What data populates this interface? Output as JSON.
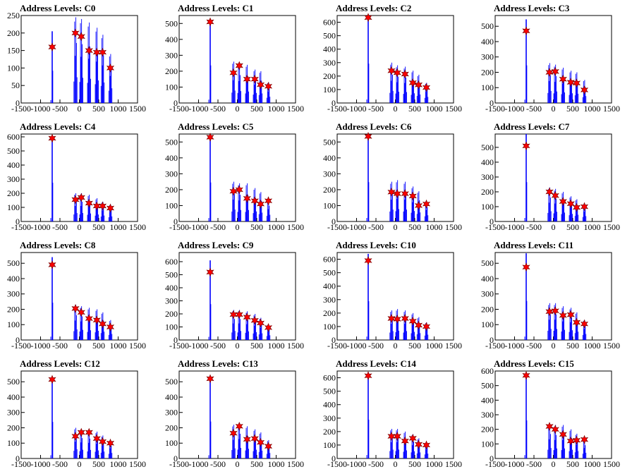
{
  "chart_data": [
    {
      "type": "bar",
      "title": "Address Levels: C0",
      "xlim": [
        -1500,
        1500
      ],
      "ylim": [
        0,
        250
      ],
      "yticks": [
        0,
        50,
        100,
        150,
        200,
        250
      ],
      "main_peak": {
        "x": -700,
        "y": 205
      },
      "peaks_x": [
        -100,
        50,
        250,
        450,
        600,
        800
      ],
      "peaks_y": [
        245,
        240,
        230,
        215,
        195,
        140
      ],
      "markers": [
        {
          "x": -700,
          "y": 160
        },
        {
          "x": -100,
          "y": 200
        },
        {
          "x": 50,
          "y": 190
        },
        {
          "x": 250,
          "y": 150
        },
        {
          "x": 450,
          "y": 145
        },
        {
          "x": 600,
          "y": 145
        },
        {
          "x": 800,
          "y": 100
        }
      ]
    },
    {
      "type": "bar",
      "title": "Address Levels: C1",
      "xlim": [
        -1500,
        1500
      ],
      "ylim": [
        0,
        550
      ],
      "yticks": [
        0,
        100,
        200,
        300,
        400,
        500
      ],
      "main_peak": {
        "x": -700,
        "y": 525
      },
      "peaks_x": [
        -100,
        50,
        250,
        450,
        600,
        800
      ],
      "peaks_y": [
        260,
        250,
        240,
        210,
        200,
        130
      ],
      "markers": [
        {
          "x": -700,
          "y": 510
        },
        {
          "x": -100,
          "y": 190
        },
        {
          "x": 50,
          "y": 235
        },
        {
          "x": 250,
          "y": 150
        },
        {
          "x": 450,
          "y": 150
        },
        {
          "x": 600,
          "y": 115
        },
        {
          "x": 800,
          "y": 105
        }
      ]
    },
    {
      "type": "bar",
      "title": "Address Levels: C2",
      "xlim": [
        -1500,
        1500
      ],
      "ylim": [
        0,
        650
      ],
      "yticks": [
        0,
        100,
        200,
        300,
        400,
        500,
        600
      ],
      "main_peak": {
        "x": -700,
        "y": 650
      },
      "peaks_x": [
        -100,
        50,
        250,
        450,
        600,
        800
      ],
      "peaks_y": [
        300,
        280,
        270,
        240,
        210,
        150
      ],
      "markers": [
        {
          "x": -700,
          "y": 635
        },
        {
          "x": -100,
          "y": 240
        },
        {
          "x": 50,
          "y": 225
        },
        {
          "x": 250,
          "y": 215
        },
        {
          "x": 450,
          "y": 150
        },
        {
          "x": 600,
          "y": 135
        },
        {
          "x": 800,
          "y": 115
        }
      ]
    },
    {
      "type": "bar",
      "title": "Address Levels: C3",
      "xlim": [
        -1500,
        1500
      ],
      "ylim": [
        0,
        570
      ],
      "yticks": [
        0,
        100,
        200,
        300,
        400,
        500
      ],
      "main_peak": {
        "x": -700,
        "y": 545
      },
      "peaks_x": [
        -100,
        50,
        250,
        450,
        600,
        800
      ],
      "peaks_y": [
        260,
        250,
        230,
        210,
        200,
        150
      ],
      "markers": [
        {
          "x": -700,
          "y": 470
        },
        {
          "x": -100,
          "y": 200
        },
        {
          "x": 50,
          "y": 205
        },
        {
          "x": 250,
          "y": 155
        },
        {
          "x": 450,
          "y": 135
        },
        {
          "x": 600,
          "y": 130
        },
        {
          "x": 800,
          "y": 85
        }
      ]
    },
    {
      "type": "bar",
      "title": "Address Levels: C4",
      "xlim": [
        -1500,
        1500
      ],
      "ylim": [
        0,
        620
      ],
      "yticks": [
        0,
        100,
        200,
        300,
        400,
        500,
        600
      ],
      "main_peak": {
        "x": -700,
        "y": 610
      },
      "peaks_x": [
        -100,
        50,
        250,
        450,
        600,
        800
      ],
      "peaks_y": [
        200,
        200,
        190,
        165,
        140,
        120
      ],
      "markers": [
        {
          "x": -700,
          "y": 590
        },
        {
          "x": -100,
          "y": 155
        },
        {
          "x": 50,
          "y": 170
        },
        {
          "x": 250,
          "y": 130
        },
        {
          "x": 450,
          "y": 110
        },
        {
          "x": 600,
          "y": 110
        },
        {
          "x": 800,
          "y": 95
        }
      ]
    },
    {
      "type": "bar",
      "title": "Address Levels: C5",
      "xlim": [
        -1500,
        1500
      ],
      "ylim": [
        0,
        550
      ],
      "yticks": [
        0,
        100,
        200,
        300,
        400,
        500
      ],
      "main_peak": {
        "x": -700,
        "y": 545
      },
      "peaks_x": [
        -100,
        50,
        250,
        450,
        600,
        800
      ],
      "peaks_y": [
        250,
        240,
        240,
        210,
        185,
        140
      ],
      "markers": [
        {
          "x": -700,
          "y": 530
        },
        {
          "x": -100,
          "y": 190
        },
        {
          "x": 50,
          "y": 200
        },
        {
          "x": 250,
          "y": 145
        },
        {
          "x": 450,
          "y": 130
        },
        {
          "x": 600,
          "y": 110
        },
        {
          "x": 800,
          "y": 130
        }
      ]
    },
    {
      "type": "bar",
      "title": "Address Levels: C6",
      "xlim": [
        -1500,
        1500
      ],
      "ylim": [
        0,
        550
      ],
      "yticks": [
        0,
        100,
        200,
        300,
        400,
        500
      ],
      "main_peak": {
        "x": -700,
        "y": 550
      },
      "peaks_x": [
        -100,
        50,
        250,
        450,
        600,
        800
      ],
      "peaks_y": [
        250,
        260,
        250,
        220,
        190,
        130
      ],
      "markers": [
        {
          "x": -700,
          "y": 535
        },
        {
          "x": -100,
          "y": 185
        },
        {
          "x": 50,
          "y": 175
        },
        {
          "x": 250,
          "y": 175
        },
        {
          "x": 450,
          "y": 160
        },
        {
          "x": 600,
          "y": 100
        },
        {
          "x": 800,
          "y": 110
        }
      ]
    },
    {
      "type": "bar",
      "title": "Address Levels: C7",
      "xlim": [
        -1500,
        1500
      ],
      "ylim": [
        0,
        590
      ],
      "yticks": [
        0,
        100,
        200,
        300,
        400,
        500
      ],
      "main_peak": {
        "x": -700,
        "y": 590
      },
      "peaks_x": [
        -100,
        50,
        250,
        450,
        600,
        800
      ],
      "peaks_y": [
        230,
        220,
        200,
        170,
        150,
        120
      ],
      "markers": [
        {
          "x": -700,
          "y": 510
        },
        {
          "x": -100,
          "y": 200
        },
        {
          "x": 50,
          "y": 175
        },
        {
          "x": 250,
          "y": 135
        },
        {
          "x": 450,
          "y": 120
        },
        {
          "x": 600,
          "y": 95
        },
        {
          "x": 800,
          "y": 100
        }
      ]
    },
    {
      "type": "bar",
      "title": "Address Levels: C8",
      "xlim": [
        -1500,
        1500
      ],
      "ylim": [
        0,
        570
      ],
      "yticks": [
        0,
        100,
        200,
        300,
        400,
        500
      ],
      "main_peak": {
        "x": -700,
        "y": 540
      },
      "peaks_x": [
        -100,
        50,
        250,
        450,
        600,
        800
      ],
      "peaks_y": [
        230,
        220,
        210,
        200,
        180,
        130
      ],
      "markers": [
        {
          "x": -700,
          "y": 490
        },
        {
          "x": -100,
          "y": 205
        },
        {
          "x": 50,
          "y": 180
        },
        {
          "x": 250,
          "y": 140
        },
        {
          "x": 450,
          "y": 130
        },
        {
          "x": 600,
          "y": 105
        },
        {
          "x": 800,
          "y": 85
        }
      ]
    },
    {
      "type": "bar",
      "title": "Address Levels: C9",
      "xlim": [
        -1500,
        1500
      ],
      "ylim": [
        0,
        670
      ],
      "yticks": [
        0,
        100,
        200,
        300,
        400,
        500,
        600
      ],
      "main_peak": {
        "x": -700,
        "y": 610
      },
      "peaks_x": [
        -100,
        50,
        250,
        450,
        600,
        800
      ],
      "peaks_y": [
        230,
        230,
        220,
        200,
        170,
        120
      ],
      "markers": [
        {
          "x": -700,
          "y": 520
        },
        {
          "x": -100,
          "y": 195
        },
        {
          "x": 50,
          "y": 195
        },
        {
          "x": 250,
          "y": 175
        },
        {
          "x": 450,
          "y": 150
        },
        {
          "x": 600,
          "y": 130
        },
        {
          "x": 800,
          "y": 95
        }
      ]
    },
    {
      "type": "bar",
      "title": "Address Levels: C10",
      "xlim": [
        -1500,
        1500
      ],
      "ylim": [
        0,
        650
      ],
      "yticks": [
        0,
        100,
        200,
        300,
        400,
        500,
        600
      ],
      "main_peak": {
        "x": -700,
        "y": 640
      },
      "peaks_x": [
        -100,
        50,
        250,
        450,
        600,
        800
      ],
      "peaks_y": [
        220,
        230,
        220,
        200,
        170,
        130
      ],
      "markers": [
        {
          "x": -700,
          "y": 590
        },
        {
          "x": -100,
          "y": 160
        },
        {
          "x": 50,
          "y": 155
        },
        {
          "x": 250,
          "y": 160
        },
        {
          "x": 450,
          "y": 140
        },
        {
          "x": 600,
          "y": 110
        },
        {
          "x": 800,
          "y": 100
        }
      ]
    },
    {
      "type": "bar",
      "title": "Address Levels: C11",
      "xlim": [
        -1500,
        1500
      ],
      "ylim": [
        0,
        570
      ],
      "yticks": [
        0,
        100,
        200,
        300,
        400,
        500
      ],
      "main_peak": {
        "x": -700,
        "y": 565
      },
      "peaks_x": [
        -100,
        50,
        250,
        450,
        600,
        800
      ],
      "peaks_y": [
        240,
        240,
        220,
        210,
        180,
        130
      ],
      "markers": [
        {
          "x": -700,
          "y": 475
        },
        {
          "x": -100,
          "y": 185
        },
        {
          "x": 50,
          "y": 190
        },
        {
          "x": 250,
          "y": 160
        },
        {
          "x": 450,
          "y": 165
        },
        {
          "x": 600,
          "y": 115
        },
        {
          "x": 800,
          "y": 105
        }
      ]
    },
    {
      "type": "bar",
      "title": "Address Levels: C12",
      "xlim": [
        -1500,
        1500
      ],
      "ylim": [
        0,
        570
      ],
      "yticks": [
        0,
        100,
        200,
        300,
        400,
        500
      ],
      "main_peak": {
        "x": -700,
        "y": 530
      },
      "peaks_x": [
        -100,
        50,
        250,
        450,
        600,
        800
      ],
      "peaks_y": [
        200,
        190,
        185,
        175,
        150,
        120
      ],
      "markers": [
        {
          "x": -700,
          "y": 515
        },
        {
          "x": -100,
          "y": 145
        },
        {
          "x": 50,
          "y": 170
        },
        {
          "x": 250,
          "y": 170
        },
        {
          "x": 450,
          "y": 130
        },
        {
          "x": 600,
          "y": 110
        },
        {
          "x": 800,
          "y": 100
        }
      ]
    },
    {
      "type": "bar",
      "title": "Address Levels: C13",
      "xlim": [
        -1500,
        1500
      ],
      "ylim": [
        0,
        570
      ],
      "yticks": [
        0,
        100,
        200,
        300,
        400,
        500
      ],
      "main_peak": {
        "x": -700,
        "y": 535
      },
      "peaks_x": [
        -100,
        50,
        250,
        450,
        600,
        800
      ],
      "peaks_y": [
        220,
        230,
        210,
        190,
        170,
        120
      ],
      "markers": [
        {
          "x": -700,
          "y": 520
        },
        {
          "x": -100,
          "y": 165
        },
        {
          "x": 50,
          "y": 210
        },
        {
          "x": 250,
          "y": 125
        },
        {
          "x": 450,
          "y": 130
        },
        {
          "x": 600,
          "y": 105
        },
        {
          "x": 800,
          "y": 80
        }
      ]
    },
    {
      "type": "bar",
      "title": "Address Levels: C14",
      "xlim": [
        -1500,
        1500
      ],
      "ylim": [
        0,
        650
      ],
      "yticks": [
        0,
        100,
        200,
        300,
        400,
        500,
        600
      ],
      "main_peak": {
        "x": -700,
        "y": 640
      },
      "peaks_x": [
        -100,
        50,
        250,
        450,
        600,
        800
      ],
      "peaks_y": [
        220,
        220,
        200,
        180,
        150,
        120
      ],
      "markers": [
        {
          "x": -700,
          "y": 615
        },
        {
          "x": -100,
          "y": 165
        },
        {
          "x": 50,
          "y": 165
        },
        {
          "x": 250,
          "y": 130
        },
        {
          "x": 450,
          "y": 150
        },
        {
          "x": 600,
          "y": 105
        },
        {
          "x": 800,
          "y": 100
        }
      ]
    },
    {
      "type": "bar",
      "title": "Address Levels: C15",
      "xlim": [
        -1500,
        1500
      ],
      "ylim": [
        0,
        600
      ],
      "yticks": [
        0,
        100,
        200,
        300,
        400,
        500,
        600
      ],
      "main_peak": {
        "x": -700,
        "y": 580
      },
      "peaks_x": [
        -100,
        50,
        250,
        450,
        600,
        800
      ],
      "peaks_y": [
        240,
        230,
        230,
        200,
        170,
        130
      ],
      "markers": [
        {
          "x": -700,
          "y": 570
        },
        {
          "x": -100,
          "y": 220
        },
        {
          "x": 50,
          "y": 200
        },
        {
          "x": 250,
          "y": 165
        },
        {
          "x": 450,
          "y": 120
        },
        {
          "x": 600,
          "y": 125
        },
        {
          "x": 800,
          "y": 130
        }
      ]
    }
  ],
  "xticks": [
    -1500,
    -1000,
    -500,
    0,
    500,
    1000,
    1500
  ],
  "colors": {
    "hist": "#0000ff",
    "marker": "#ff0000",
    "axis": "#000000"
  }
}
